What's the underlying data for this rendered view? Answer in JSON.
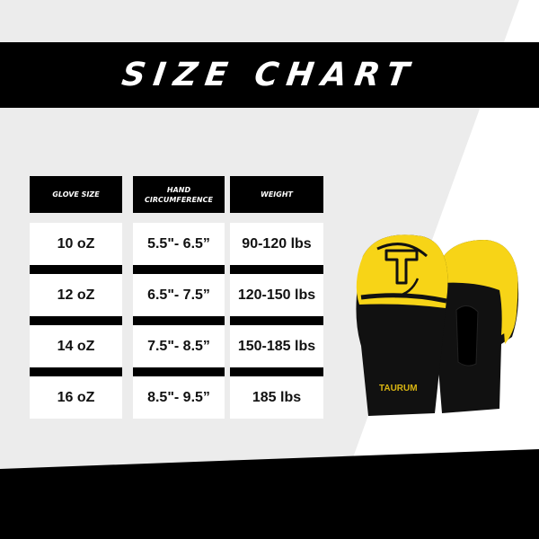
{
  "title": "SIZE CHART",
  "table": {
    "headers": [
      "GLOVE SIZE",
      "HAND CIRCUMFERENCE",
      "WEIGHT"
    ],
    "rows": [
      [
        "10 oZ",
        "5.5\"- 6.5”",
        "90-120 lbs"
      ],
      [
        "12 oZ",
        "6.5\"- 7.5”",
        "120-150 lbs"
      ],
      [
        "14 oZ",
        "7.5\"- 8.5”",
        "150-185 lbs"
      ],
      [
        "16 oZ",
        "8.5\"- 9.5”",
        "185 lbs"
      ]
    ]
  },
  "product": {
    "brand": "TAURUM",
    "colors": {
      "primary": "#f7d417",
      "secondary": "#111111"
    }
  }
}
